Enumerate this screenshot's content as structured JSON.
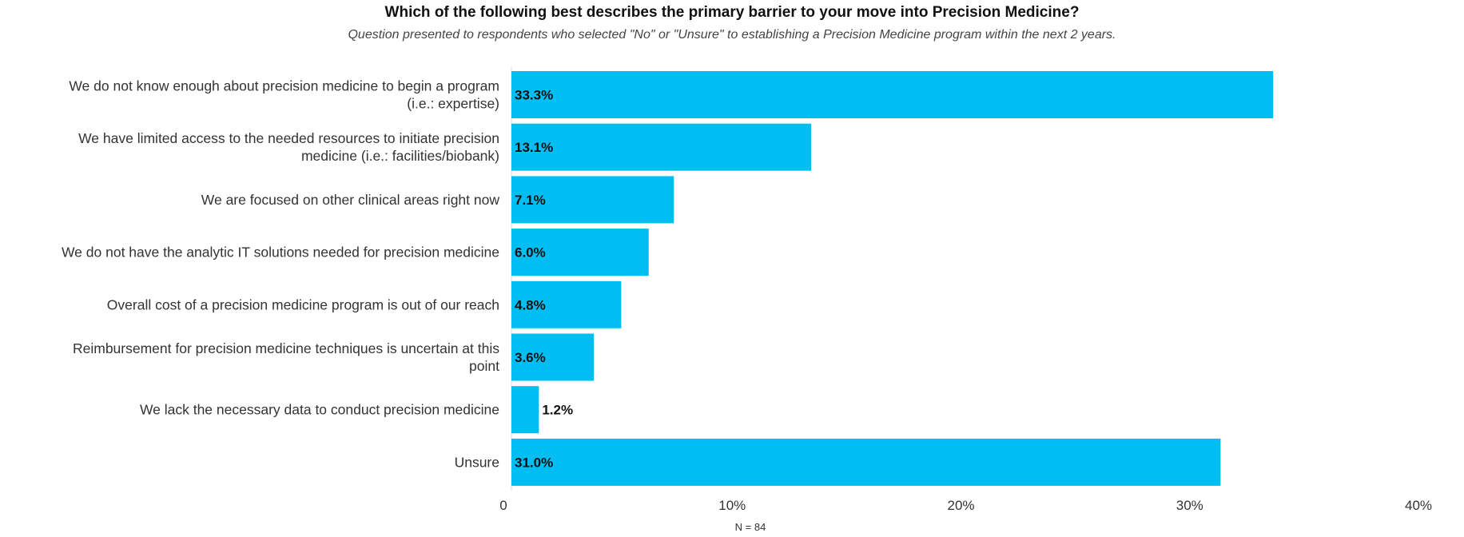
{
  "chart_data": {
    "type": "bar",
    "orientation": "horizontal",
    "title": "Which of the following best describes the primary barrier to your move into Precision Medicine?",
    "subtitle": "Question presented to respondents who selected \"No\" or \"Unsure\" to establishing a Precision Medicine program within the next 2 years.",
    "categories": [
      [
        "We do not know enough about precision medicine to begin a program",
        "(i.e.: expertise)"
      ],
      [
        "We have limited access to the needed resources to initiate precision",
        "medicine (i.e.: facilities/biobank)"
      ],
      [
        "We are focused on other clinical areas right now"
      ],
      [
        "We do not have the analytic IT solutions needed for precision medicine"
      ],
      [
        "Overall cost of a precision medicine program is out of our reach"
      ],
      [
        "Reimbursement for precision medicine techniques is uncertain at this",
        "point"
      ],
      [
        "We lack the necessary data to conduct precision medicine"
      ],
      [
        "Unsure"
      ]
    ],
    "values": [
      33.3,
      13.1,
      7.1,
      6.0,
      4.8,
      3.6,
      1.2,
      31.0
    ],
    "value_labels": [
      "33.3%",
      "13.1%",
      "7.1%",
      "6.0%",
      "4.8%",
      "3.6%",
      "1.2%",
      "31.0%"
    ],
    "xlim": [
      0,
      40
    ],
    "x_ticks": [
      0,
      10,
      20,
      30,
      40
    ],
    "x_tick_labels": [
      "0",
      "10%",
      "20%",
      "30%",
      "40%"
    ],
    "grid": false,
    "legend": "none",
    "bar_color": "#00BEF2",
    "footnote": "N = 84"
  }
}
